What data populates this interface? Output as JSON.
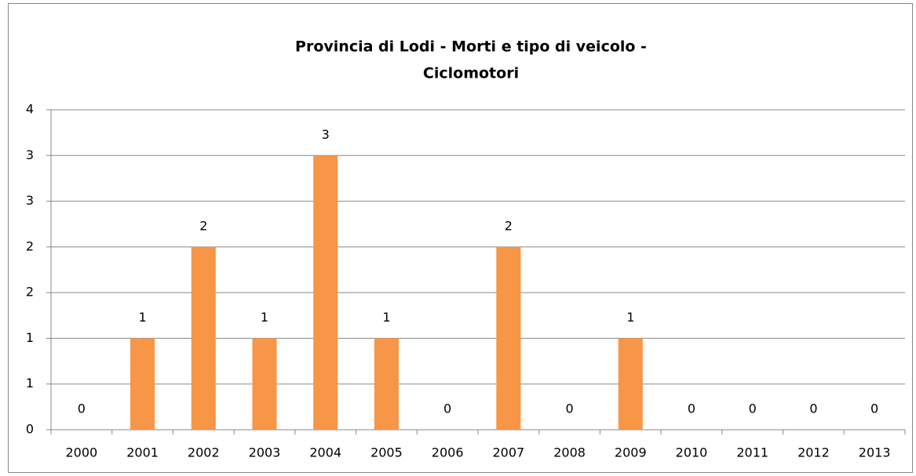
{
  "chart_data": {
    "type": "bar",
    "title": [
      "Provincia di Lodi - Morti e tipo di veicolo -",
      "Ciclomotori"
    ],
    "categories": [
      "2000",
      "2001",
      "2002",
      "2003",
      "2004",
      "2005",
      "2006",
      "2007",
      "2008",
      "2009",
      "2010",
      "2011",
      "2012",
      "2013"
    ],
    "values": [
      0,
      1,
      2,
      1,
      3,
      1,
      0,
      2,
      0,
      1,
      0,
      0,
      0,
      0
    ],
    "color": "#f79646",
    "ylim": [
      0,
      3.5
    ],
    "yticks": [
      0,
      {
        "value": 0.5,
        "label": "1"
      },
      1,
      {
        "value": 1.5,
        "label": "2"
      },
      2,
      {
        "value": 2.5,
        "label": "3"
      },
      3,
      {
        "value": 3.5,
        "label": "4"
      }
    ],
    "grid": true
  }
}
